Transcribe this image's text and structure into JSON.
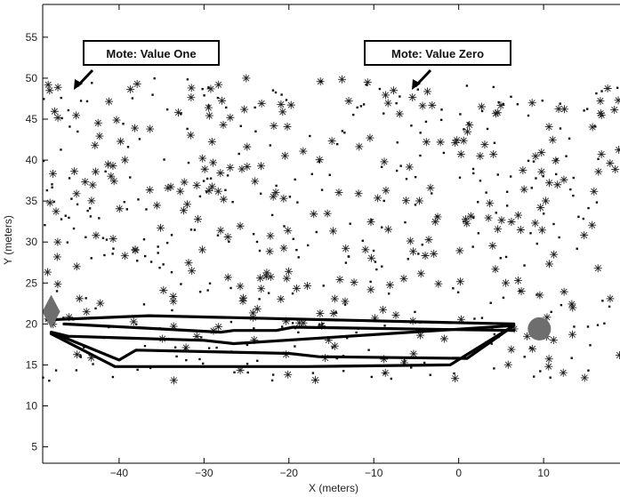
{
  "chart_data": {
    "type": "scatter",
    "title": "",
    "xlabel": "X (meters)",
    "ylabel": "Y (meters)",
    "xlim": [
      -49,
      19
    ],
    "ylim": [
      3,
      59
    ],
    "xticks": [
      -40,
      -30,
      -20,
      -10,
      0,
      10
    ],
    "yticks": [
      5,
      10,
      15,
      20,
      25,
      30,
      35,
      40,
      45,
      50,
      55
    ],
    "grid": false,
    "legend": "none",
    "field": {
      "x": [
        -49,
        19
      ],
      "y": [
        13,
        50
      ]
    },
    "annotations": [
      {
        "text": "Mote: Value One",
        "target": [
          -47,
          48.5
        ]
      },
      {
        "text": "Mote: Value Zero",
        "target": [
          -6.5,
          48.5
        ]
      }
    ],
    "source_marker": {
      "shape": "diamond",
      "x": -48,
      "y": 21.5
    },
    "sink_marker": {
      "shape": "circle",
      "x": 9.5,
      "y": 19.4
    },
    "paths": [
      [
        [
          -48.5,
          20.5
        ],
        [
          -36.5,
          21
        ],
        [
          6.5,
          20
        ]
      ],
      [
        [
          -46.5,
          20
        ],
        [
          -37,
          19.5
        ],
        [
          -28,
          19
        ],
        [
          -26.5,
          19.2
        ],
        [
          -21.5,
          19.2
        ],
        [
          -19.5,
          19.6
        ],
        [
          6.5,
          19.2
        ]
      ],
      [
        [
          -48,
          19
        ],
        [
          -46,
          18.5
        ],
        [
          -30,
          18
        ],
        [
          -26.5,
          17.6
        ],
        [
          6.5,
          19.8
        ],
        [
          1,
          15.8
        ],
        [
          -16.5,
          16
        ],
        [
          -20,
          16.4
        ],
        [
          -38,
          16.8
        ],
        [
          -40,
          15.6
        ],
        [
          -48,
          19
        ]
      ],
      [
        [
          -48,
          18.8
        ],
        [
          -40.5,
          14.8
        ],
        [
          -18,
          14.8
        ],
        [
          -1,
          15
        ],
        [
          6.5,
          19.8
        ]
      ]
    ]
  }
}
